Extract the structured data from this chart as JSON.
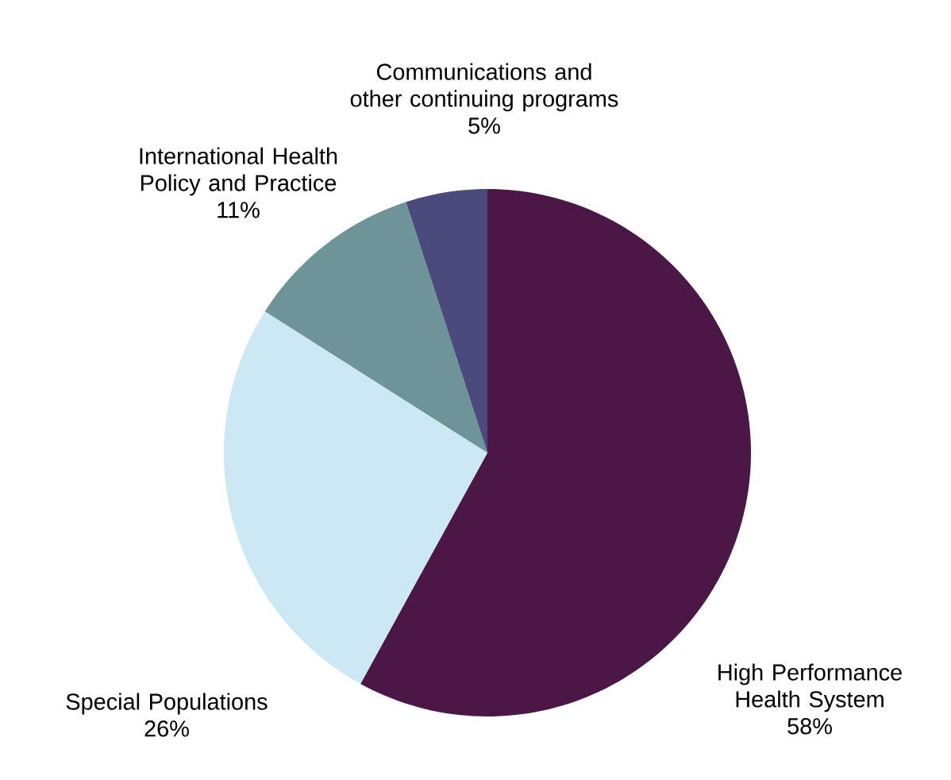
{
  "chart_data": {
    "type": "pie",
    "categories": [
      "High Performance Health System",
      "Special Populations",
      "International Health Policy and Practice",
      "Communications and other continuing programs"
    ],
    "values": [
      58,
      26,
      11,
      5
    ],
    "value_labels": [
      "58%",
      "26%",
      "11%",
      "5%"
    ],
    "colors": [
      "#4a1746",
      "#cce8f5",
      "#6e9499",
      "#4b4a7c"
    ]
  }
}
